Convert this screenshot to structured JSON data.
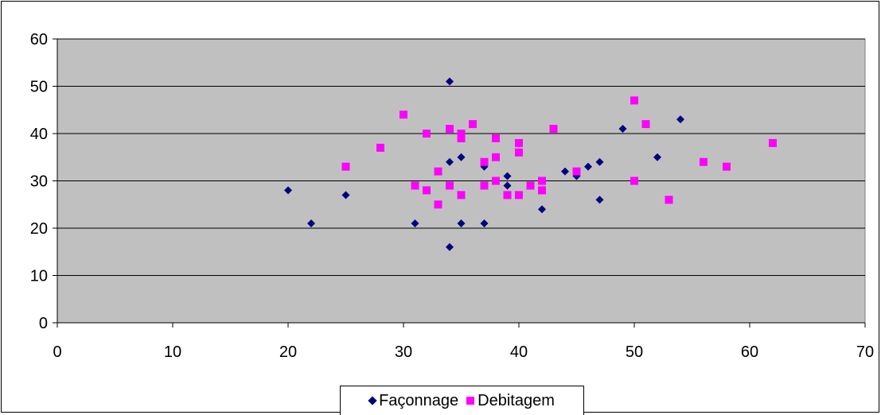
{
  "chart_data": {
    "type": "scatter",
    "xlim": [
      0,
      70
    ],
    "ylim": [
      0,
      60
    ],
    "x_ticks": [
      "0",
      "10",
      "20",
      "30",
      "40",
      "50",
      "60",
      "70"
    ],
    "y_ticks": [
      "0",
      "10",
      "20",
      "30",
      "40",
      "50",
      "60"
    ],
    "grid": "horizontal",
    "plot_background": "#C0C0C0",
    "legend_position": "bottom",
    "series": [
      {
        "name": "Façonnage",
        "marker": "diamond",
        "color": "#000080",
        "points": [
          [
            20,
            28
          ],
          [
            22,
            21
          ],
          [
            25,
            27
          ],
          [
            31,
            21
          ],
          [
            34,
            51
          ],
          [
            34,
            34
          ],
          [
            34,
            16
          ],
          [
            35,
            35
          ],
          [
            35,
            21
          ],
          [
            37,
            33
          ],
          [
            37,
            21
          ],
          [
            39,
            31
          ],
          [
            39,
            29
          ],
          [
            42,
            24
          ],
          [
            44,
            32
          ],
          [
            45,
            31
          ],
          [
            46,
            33
          ],
          [
            47,
            34
          ],
          [
            47,
            26
          ],
          [
            49,
            41
          ],
          [
            52,
            35
          ],
          [
            54,
            43
          ]
        ]
      },
      {
        "name": "Debitagem",
        "marker": "square",
        "color": "#FF00FF",
        "points": [
          [
            25,
            33
          ],
          [
            28,
            37
          ],
          [
            30,
            44
          ],
          [
            31,
            29
          ],
          [
            32,
            40
          ],
          [
            32,
            28
          ],
          [
            33,
            32
          ],
          [
            33,
            25
          ],
          [
            34,
            41
          ],
          [
            34,
            29
          ],
          [
            35,
            40
          ],
          [
            35,
            39
          ],
          [
            35,
            27
          ],
          [
            36,
            42
          ],
          [
            37,
            34
          ],
          [
            37,
            29
          ],
          [
            38,
            39
          ],
          [
            38,
            35
          ],
          [
            38,
            30
          ],
          [
            39,
            27
          ],
          [
            40,
            38
          ],
          [
            40,
            36
          ],
          [
            40,
            27
          ],
          [
            41,
            29
          ],
          [
            42,
            30
          ],
          [
            42,
            28
          ],
          [
            43,
            41
          ],
          [
            45,
            32
          ],
          [
            50,
            47
          ],
          [
            50,
            30
          ],
          [
            51,
            42
          ],
          [
            53,
            26
          ],
          [
            56,
            34
          ],
          [
            58,
            33
          ],
          [
            62,
            38
          ]
        ]
      }
    ]
  }
}
